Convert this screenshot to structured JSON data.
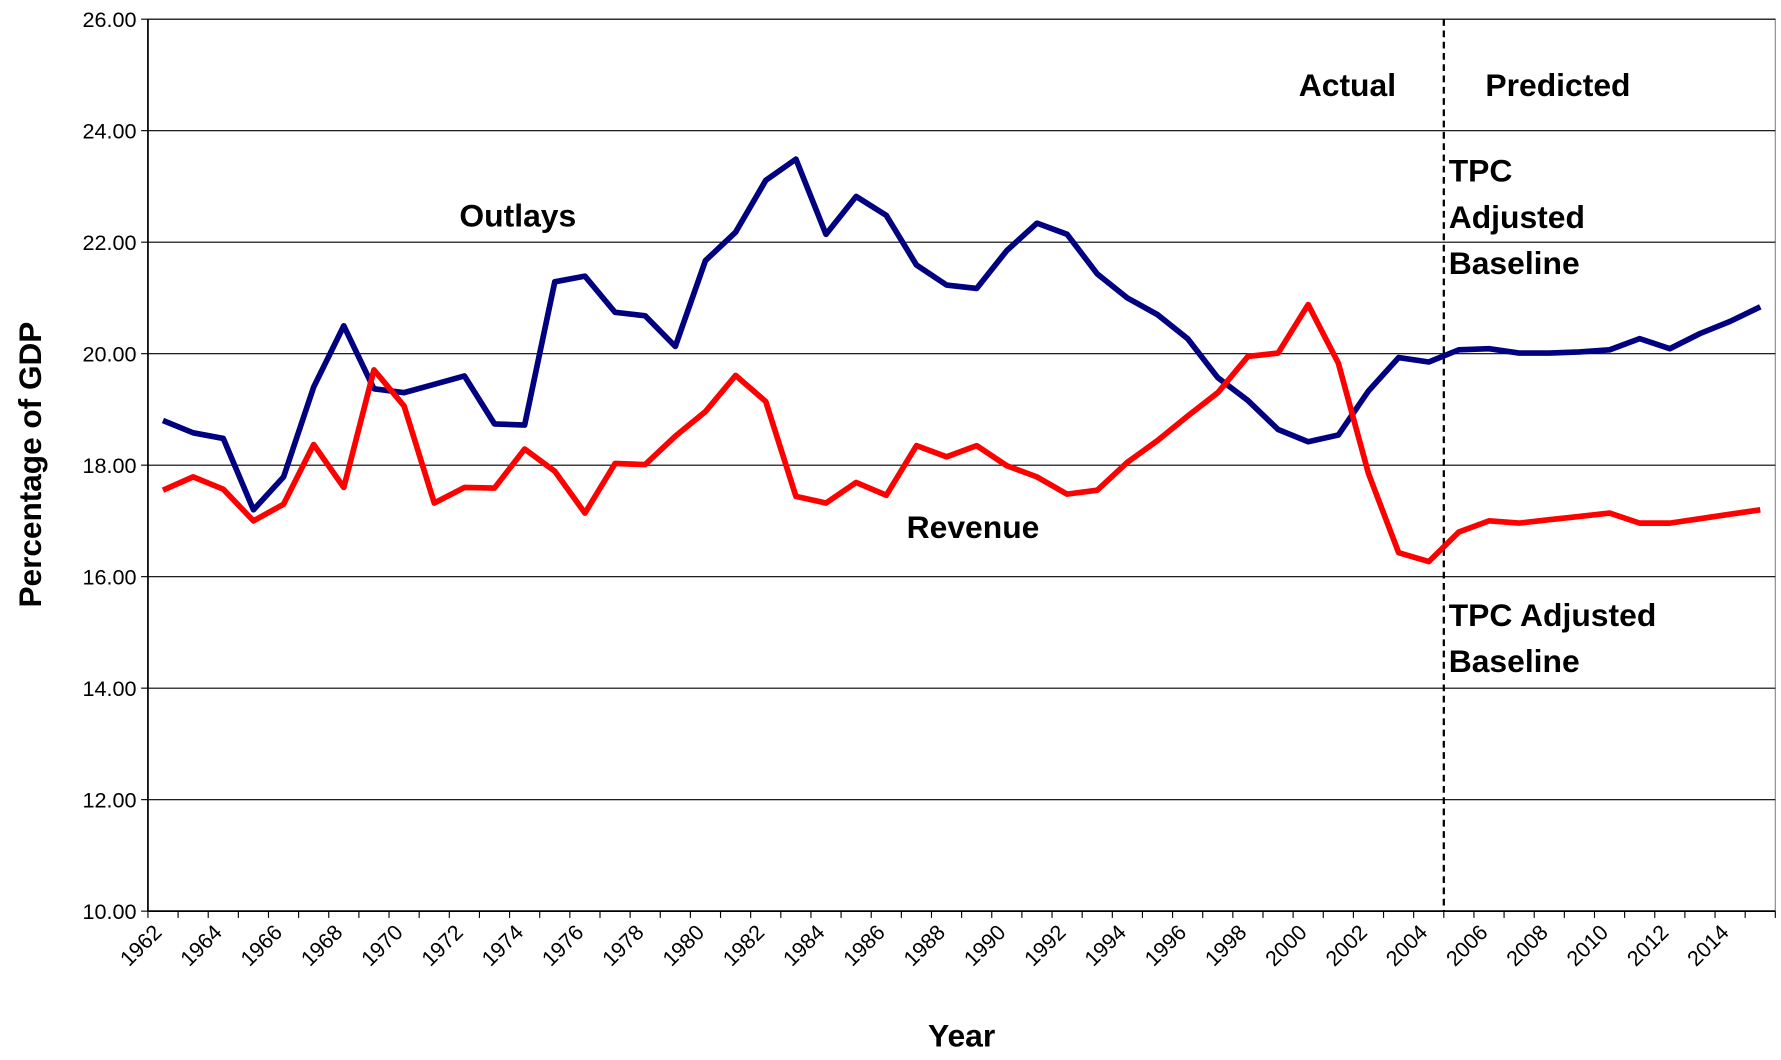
{
  "chart_data": {
    "type": "line",
    "x_label": "Year",
    "y_label": "Percentage of GDP",
    "categories": [
      "1962",
      null,
      "1964",
      null,
      "1966",
      null,
      "1968",
      null,
      "1970",
      null,
      "1972",
      null,
      "1974",
      null,
      "1976",
      null,
      "1978",
      null,
      "1980",
      null,
      "1982",
      null,
      "1984",
      null,
      "1986",
      null,
      "1988",
      null,
      "1990",
      null,
      "1992",
      null,
      "1994",
      null,
      "1996",
      null,
      "1998",
      null,
      "2000",
      null,
      "2002",
      null,
      "2004",
      null,
      "2006",
      null,
      "2008",
      null,
      "2010",
      null,
      "2012",
      null,
      "2014",
      null
    ],
    "series": [
      {
        "name": "Outlays",
        "color": "#000080",
        "values": [
          18.8,
          18.58,
          18.48,
          17.2,
          17.79,
          19.4,
          20.5,
          19.37,
          19.3,
          19.45,
          19.6,
          18.74,
          18.72,
          21.29,
          21.39,
          20.74,
          20.68,
          20.13,
          21.67,
          22.18,
          23.11,
          23.49,
          22.14,
          22.82,
          22.48,
          21.59,
          21.23,
          21.17,
          21.85,
          22.34,
          22.14,
          21.43,
          21.0,
          20.7,
          20.27,
          19.57,
          19.16,
          18.64,
          18.42,
          18.54,
          19.33,
          19.93,
          19.85,
          20.07,
          20.09,
          20.01,
          20.01,
          20.03,
          20.07,
          20.27,
          20.09,
          20.36,
          20.58,
          20.84
        ]
      },
      {
        "name": "Revenue",
        "color": "#ff0000",
        "values": [
          17.55,
          17.79,
          17.57,
          17.0,
          17.3,
          18.37,
          17.6,
          19.71,
          19.06,
          17.32,
          17.6,
          17.59,
          18.29,
          17.89,
          17.14,
          18.03,
          18.01,
          18.52,
          18.96,
          19.61,
          19.14,
          17.44,
          17.32,
          17.69,
          17.46,
          18.35,
          18.15,
          18.35,
          17.99,
          17.79,
          17.48,
          17.55,
          18.05,
          18.44,
          18.88,
          19.3,
          19.95,
          20.01,
          20.88,
          19.83,
          17.85,
          16.43,
          16.27,
          16.8,
          17.0,
          16.96,
          17.02,
          17.08,
          17.14,
          16.96,
          16.96,
          17.04,
          17.12,
          17.2
        ]
      }
    ],
    "ylim": [
      10,
      26
    ],
    "yticks": [
      {
        "value": 10,
        "label": "10.00"
      },
      {
        "value": 12,
        "label": "12.00"
      },
      {
        "value": 14,
        "label": "14.00"
      },
      {
        "value": 16,
        "label": "16.00"
      },
      {
        "value": 18,
        "label": "18.00"
      },
      {
        "value": 20,
        "label": "20.00"
      },
      {
        "value": 22,
        "label": "22.00"
      },
      {
        "value": 24,
        "label": "24.00"
      },
      {
        "value": 26,
        "label": "26.00"
      }
    ],
    "grid": true,
    "annotations": [
      {
        "lines": [
          "Actual"
        ]
      },
      {
        "lines": [
          "Predicted"
        ]
      },
      {
        "lines": [
          "TPC",
          "Adjusted",
          "Baseline"
        ]
      },
      {
        "lines": [
          "TPC Adjusted",
          "Baseline"
        ]
      }
    ]
  }
}
